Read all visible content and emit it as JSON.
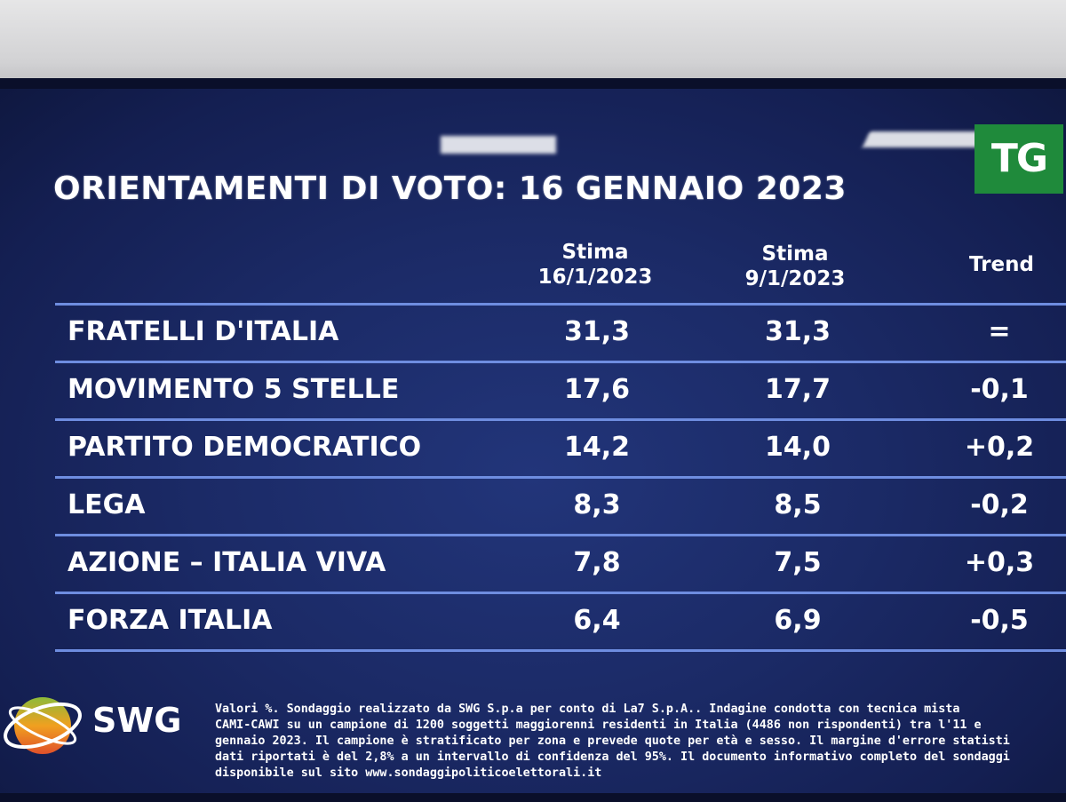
{
  "title": "ORIENTAMENTI DI VOTO: 16 GENNAIO 2023",
  "channel_logo": "TG",
  "table": {
    "headers": {
      "col1_line1": "Stima",
      "col1_line2": "16/1/2023",
      "col2_line1": "Stima",
      "col2_line2": "9/1/2023",
      "col3": "Trend"
    },
    "rows": [
      {
        "party": "FRATELLI D'ITALIA",
        "v1": "31,3",
        "v2": "31,3",
        "trend": "="
      },
      {
        "party": "MOVIMENTO 5 STELLE",
        "v1": "17,6",
        "v2": "17,7",
        "trend": "-0,1"
      },
      {
        "party": "PARTITO DEMOCRATICO",
        "v1": "14,2",
        "v2": "14,0",
        "trend": "+0,2"
      },
      {
        "party": "LEGA",
        "v1": "8,3",
        "v2": "8,5",
        "trend": "-0,2"
      },
      {
        "party": "AZIONE – ITALIA VIVA",
        "v1": "7,8",
        "v2": "7,5",
        "trend": "+0,3"
      },
      {
        "party": "FORZA ITALIA",
        "v1": "6,4",
        "v2": "6,9",
        "trend": "-0,5"
      }
    ]
  },
  "chart_data": {
    "type": "table",
    "title": "ORIENTAMENTI DI VOTO: 16 GENNAIO 2023",
    "columns": [
      "Stima 16/1/2023",
      "Stima 9/1/2023",
      "Trend"
    ],
    "categories": [
      "FRATELLI D'ITALIA",
      "MOVIMENTO 5 STELLE",
      "PARTITO DEMOCRATICO",
      "LEGA",
      "AZIONE – ITALIA VIVA",
      "FORZA ITALIA"
    ],
    "series": [
      {
        "name": "Stima 16/1/2023",
        "values": [
          31.3,
          17.6,
          14.2,
          8.3,
          7.8,
          6.4
        ]
      },
      {
        "name": "Stima 9/1/2023",
        "values": [
          31.3,
          17.7,
          14.0,
          8.5,
          7.5,
          6.9
        ]
      },
      {
        "name": "Trend",
        "values": [
          0,
          -0.1,
          0.2,
          -0.2,
          0.3,
          -0.5
        ]
      }
    ]
  },
  "footer": {
    "logo_text": "SWG",
    "lines": [
      "Valori %. Sondaggio realizzato da SWG S.p.a per conto di La7 S.p.A.. Indagine condotta con tecnica mista",
      "CAMI-CAWI su un campione di 1200 soggetti maggiorenni residenti in Italia (4486 non rispondenti) tra l'11 e",
      "gennaio 2023. Il campione è stratificato per zona e prevede quote per età e sesso. Il margine d'errore statisti",
      "dati riportati è del 2,8% a un intervallo di confidenza del 95%. Il documento informativo completo del sondaggi",
      "disponibile sul sito www.sondaggipoliticoelettorali.it"
    ]
  },
  "colors": {
    "screen_bg": "#1b2a66",
    "rule": "#6e8de0",
    "tg_green": "#1f8a3b",
    "text": "#ffffff"
  }
}
